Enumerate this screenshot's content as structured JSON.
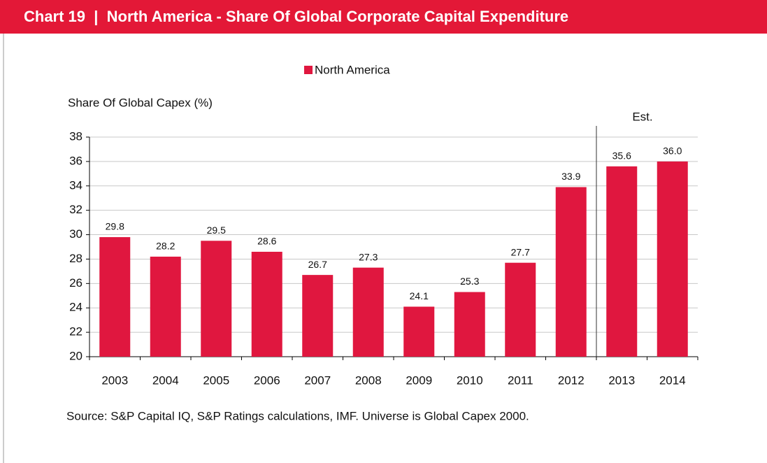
{
  "chart_data": {
    "type": "bar",
    "title": "Chart 19  |  North America - Share Of Global Corporate Capital Expenditure",
    "y_label": "Share Of Global Capex  (%)",
    "annotation": "Est.",
    "source": "Source: S&P Capital IQ, S&P Ratings calculations, IMF. Universe is Global Capex 2000.",
    "categories": [
      "2003",
      "2004",
      "2005",
      "2006",
      "2007",
      "2008",
      "2009",
      "2010",
      "2011",
      "2012",
      "2013",
      "2014"
    ],
    "series": [
      {
        "name": "North America",
        "color": "#e0173f",
        "values": [
          29.8,
          28.2,
          29.5,
          28.6,
          26.7,
          27.3,
          24.1,
          25.3,
          27.7,
          33.9,
          35.6,
          36.0
        ],
        "value_labels": [
          "29.8",
          "28.2",
          "29.5",
          "28.6",
          "26.7",
          "27.3",
          "24.1",
          "25.3",
          "27.7",
          "33.9",
          "35.6",
          "36.0"
        ]
      }
    ],
    "ylim": [
      20,
      38
    ],
    "yticks": [
      20,
      22,
      24,
      26,
      28,
      30,
      32,
      34,
      36,
      38
    ],
    "grid": true
  }
}
